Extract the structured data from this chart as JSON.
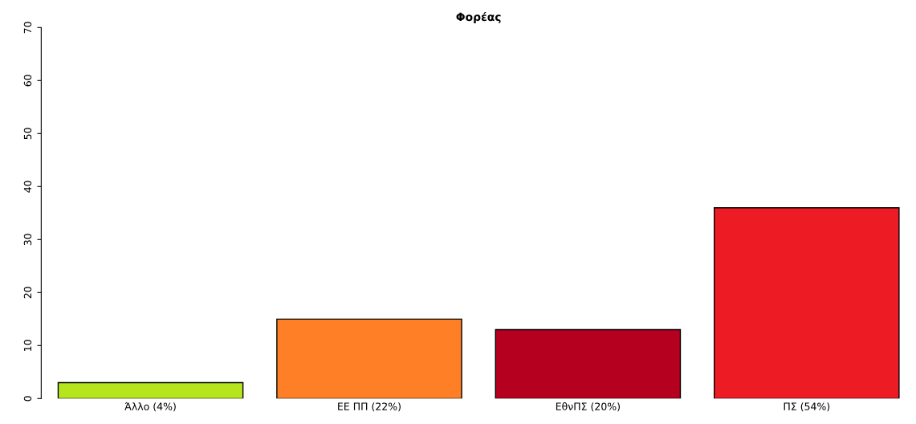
{
  "chart_data": {
    "type": "bar",
    "title": "Φορέας",
    "categories": [
      "Άλλο (4%)",
      "ΕΕ ΠΠ (22%)",
      "ΕθνΠΣ (20%)",
      "ΠΣ (54%)"
    ],
    "values": [
      3,
      15,
      13,
      36
    ],
    "colors": [
      "#b5e61d",
      "#ff7f27",
      "#b5001f",
      "#ed1c24"
    ],
    "ylim": [
      0,
      70
    ],
    "yticks": [
      0,
      10,
      20,
      30,
      40,
      50,
      60,
      70
    ],
    "grid": false
  }
}
